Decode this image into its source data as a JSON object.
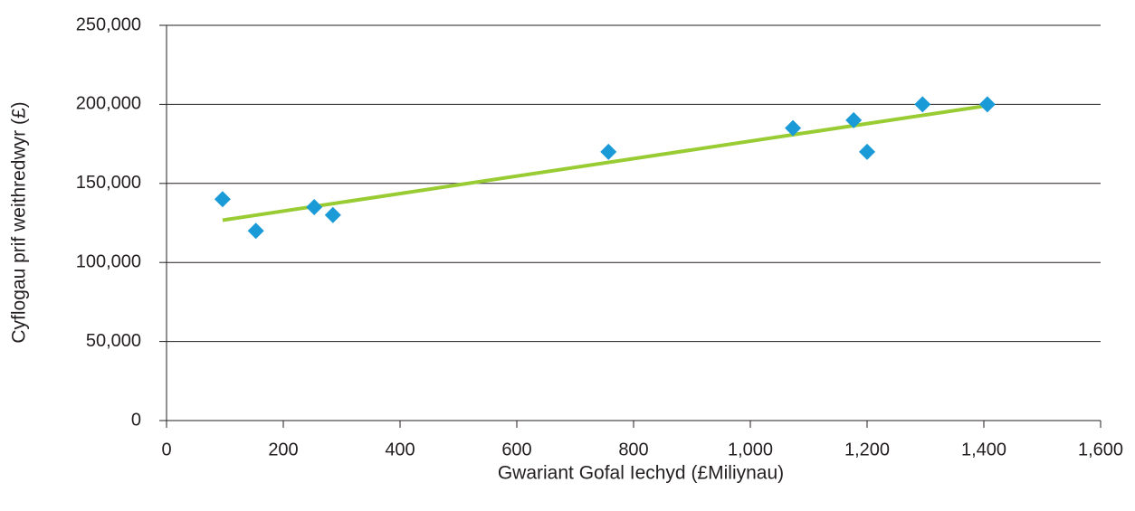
{
  "chart_data": {
    "type": "scatter",
    "x_label": "Gwariant Gofal Iechyd (£Miliynau)",
    "y_label": "Cyflogau prif weithredwyr (£)",
    "series": [
      {
        "name": null,
        "color": "#1a9ad6",
        "x": [
          96,
          153,
          253,
          285,
          757,
          1073,
          1177,
          1200,
          1295,
          1406
        ],
        "values": [
          140000,
          120000,
          135000,
          130000,
          170000,
          185000,
          190000,
          170000,
          200000,
          200000
        ]
      }
    ],
    "trendline": true,
    "trendline_color": "#99cc33",
    "xlim": [
      0,
      1600
    ],
    "xticks": [
      0,
      200,
      400,
      600,
      800,
      {
        "value": 1000,
        "label": "1,000"
      },
      {
        "value": 1200,
        "label": "1,200"
      },
      {
        "value": 1400,
        "label": "1,400"
      },
      {
        "value": 1600,
        "label": "1,600"
      }
    ],
    "ylim": [
      0,
      250000
    ],
    "yticks": [
      0,
      {
        "value": 50000,
        "label": "50,000"
      },
      {
        "value": 100000,
        "label": "100,000"
      },
      {
        "value": 150000,
        "label": "150,000"
      },
      {
        "value": 200000,
        "label": "200,000"
      },
      {
        "value": 250000,
        "label": "250,000"
      }
    ],
    "grid": true
  }
}
